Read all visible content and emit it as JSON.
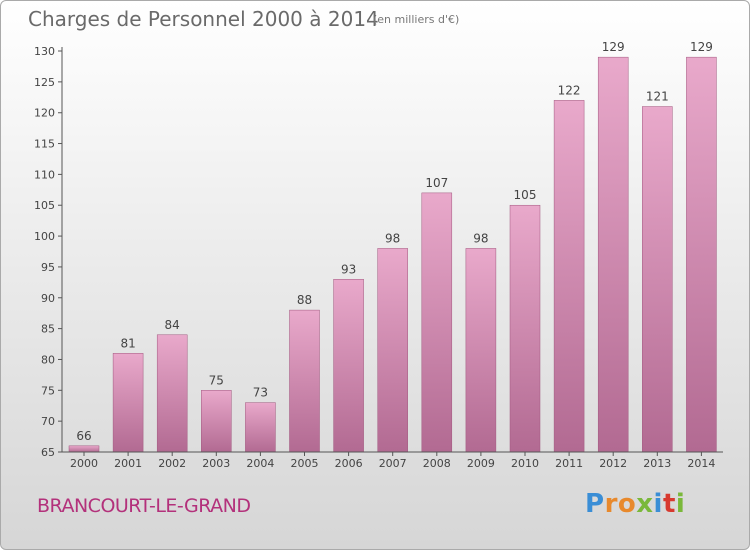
{
  "header": {
    "title": "Charges de Personnel 2000 à 2014",
    "subtitle": "(en milliers d'€)"
  },
  "footer": {
    "place": "BRANCOURT-LE-GRAND",
    "logo": {
      "letters": [
        "P",
        "r",
        "o",
        "x",
        "i",
        "t",
        "i"
      ],
      "colors": [
        "#3a8ed6",
        "#e8892c",
        "#e8892c",
        "#7ab83a",
        "#3a8ed6",
        "#d7392f",
        "#7ab83a"
      ]
    }
  },
  "chart_data": {
    "type": "bar",
    "title": "Charges de Personnel 2000 à 2014",
    "subtitle": "(en milliers d'€)",
    "categories": [
      "2000",
      "2001",
      "2002",
      "2003",
      "2004",
      "2005",
      "2006",
      "2007",
      "2008",
      "2009",
      "2010",
      "2011",
      "2012",
      "2013",
      "2014"
    ],
    "values": [
      66,
      81,
      84,
      75,
      73,
      88,
      93,
      98,
      107,
      98,
      105,
      122,
      129,
      121,
      129
    ],
    "ylim": [
      65,
      130
    ],
    "yticks": [
      65,
      70,
      75,
      80,
      85,
      90,
      95,
      100,
      105,
      110,
      115,
      120,
      125,
      130
    ],
    "bar_color": "#c8789f",
    "grid": false
  }
}
